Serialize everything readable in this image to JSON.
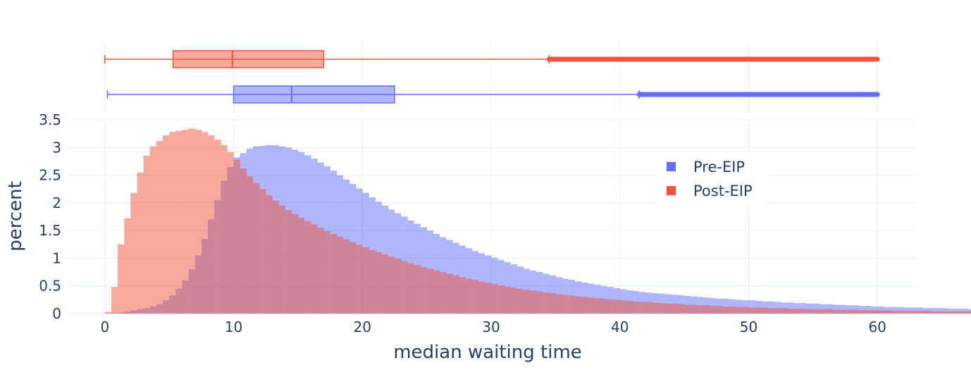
{
  "chart_data": {
    "type": "histogram",
    "xlabel": "median waiting time",
    "ylabel": "percent",
    "xlim": [
      -3,
      63
    ],
    "ylim": [
      0,
      3.5
    ],
    "x_ticks": [
      0,
      10,
      20,
      30,
      40,
      50,
      60
    ],
    "x_tick_labels": [
      "0",
      "10",
      "20",
      "30",
      "40",
      "50",
      "60"
    ],
    "y_ticks": [
      0,
      0.5,
      1,
      1.5,
      2,
      2.5,
      3,
      3.5
    ],
    "y_tick_labels": [
      "0",
      "0.5",
      "1",
      "1.5",
      "2",
      "2.5",
      "3",
      "3.5"
    ],
    "bin_start": 0,
    "bin_width": 0.5,
    "grid": true,
    "legend_position": "top-right",
    "series": [
      {
        "name": "Pre-EIP",
        "color": "#636efa",
        "values": [
          0.0,
          0.01,
          0.02,
          0.04,
          0.06,
          0.08,
          0.1,
          0.13,
          0.17,
          0.24,
          0.33,
          0.45,
          0.6,
          0.8,
          1.05,
          1.35,
          1.7,
          2.05,
          2.4,
          2.65,
          2.82,
          2.9,
          2.98,
          3.02,
          3.03,
          3.04,
          3.04,
          3.02,
          3.0,
          2.96,
          2.92,
          2.86,
          2.8,
          2.73,
          2.66,
          2.58,
          2.5,
          2.42,
          2.34,
          2.26,
          2.18,
          2.1,
          2.02,
          1.95,
          1.88,
          1.81,
          1.75,
          1.68,
          1.62,
          1.56,
          1.5,
          1.44,
          1.38,
          1.33,
          1.28,
          1.23,
          1.18,
          1.13,
          1.09,
          1.05,
          1.01,
          0.97,
          0.93,
          0.89,
          0.85,
          0.81,
          0.78,
          0.75,
          0.72,
          0.69,
          0.66,
          0.63,
          0.61,
          0.58,
          0.56,
          0.54,
          0.52,
          0.5,
          0.48,
          0.46,
          0.44,
          0.42,
          0.41,
          0.39,
          0.38,
          0.37,
          0.36,
          0.35,
          0.34,
          0.33,
          0.32,
          0.31,
          0.3,
          0.29,
          0.28,
          0.27,
          0.27,
          0.26,
          0.25,
          0.24,
          0.24,
          0.23,
          0.22,
          0.22,
          0.21,
          0.2,
          0.2,
          0.19,
          0.19,
          0.18,
          0.18,
          0.17,
          0.17,
          0.16,
          0.16,
          0.15,
          0.15,
          0.14,
          0.14,
          0.13,
          0.13,
          0.12,
          0.12,
          0.12,
          0.11,
          0.11,
          0.11,
          0.1,
          0.1,
          0.1,
          0.1,
          0.09,
          0.09,
          0.09,
          0.08,
          0.08,
          0.08,
          0.08,
          0.07,
          0.07,
          0.07,
          0.07,
          0.07,
          0.06,
          0.06,
          0.06,
          0.06,
          0.06,
          0.06,
          0.05,
          0.05,
          0.05,
          0.05,
          0.05,
          0.05,
          0.04,
          0.04,
          0.04,
          0.04,
          0.04,
          0.04,
          0.04,
          0.04,
          0.04,
          0.03,
          0.03,
          0.03,
          0.03,
          0.03,
          0.03,
          0.03,
          0.03,
          0.03,
          0.03,
          0.03,
          0.03,
          0.03,
          0.03,
          0.03,
          0.03
        ],
        "box": {
          "min": 0.2,
          "q1": 10,
          "median": 14.5,
          "q3": 22.5,
          "upper_fence": 41.5,
          "max": 60
        }
      },
      {
        "name": "Post-EIP",
        "color": "#ef553b",
        "values": [
          0.03,
          0.48,
          1.25,
          1.72,
          2.18,
          2.55,
          2.85,
          3.02,
          3.12,
          3.22,
          3.28,
          3.3,
          3.32,
          3.34,
          3.32,
          3.28,
          3.22,
          3.14,
          3.04,
          2.92,
          2.78,
          2.62,
          2.48,
          2.36,
          2.25,
          2.14,
          2.04,
          1.95,
          1.87,
          1.8,
          1.73,
          1.67,
          1.61,
          1.55,
          1.49,
          1.44,
          1.39,
          1.34,
          1.29,
          1.24,
          1.2,
          1.15,
          1.11,
          1.07,
          1.03,
          0.99,
          0.95,
          0.91,
          0.88,
          0.84,
          0.81,
          0.78,
          0.75,
          0.72,
          0.69,
          0.66,
          0.63,
          0.61,
          0.58,
          0.56,
          0.54,
          0.51,
          0.49,
          0.47,
          0.45,
          0.43,
          0.42,
          0.4,
          0.38,
          0.37,
          0.35,
          0.34,
          0.33,
          0.31,
          0.3,
          0.29,
          0.28,
          0.27,
          0.26,
          0.25,
          0.24,
          0.23,
          0.22,
          0.21,
          0.21,
          0.2,
          0.19,
          0.18,
          0.18,
          0.17,
          0.16,
          0.16,
          0.15,
          0.15,
          0.14,
          0.14,
          0.13,
          0.13,
          0.12,
          0.12,
          0.11,
          0.11,
          0.11,
          0.1,
          0.1,
          0.1,
          0.09,
          0.09,
          0.09,
          0.08,
          0.08,
          0.08,
          0.08,
          0.07,
          0.07,
          0.07,
          0.07,
          0.06,
          0.06,
          0.06,
          0.06,
          0.06,
          0.05,
          0.05,
          0.05,
          0.05,
          0.05,
          0.05,
          0.04,
          0.04,
          0.04,
          0.04,
          0.04,
          0.04,
          0.04,
          0.04,
          0.04,
          0.03,
          0.03,
          0.03,
          0.03,
          0.03,
          0.03,
          0.03,
          0.03,
          0.03,
          0.03,
          0.03,
          0.03,
          0.03,
          0.03,
          0.03,
          0.03,
          0.03,
          0.03,
          0.02,
          0.02,
          0.02,
          0.02,
          0.02,
          0.02,
          0.02,
          0.02,
          0.02,
          0.02,
          0.02,
          0.02,
          0.02,
          0.02,
          0.02,
          0.02,
          0.02,
          0.02,
          0.02,
          0.02,
          0.02,
          0.02,
          0.02,
          0.02,
          0.02
        ],
        "box": {
          "min": 0,
          "q1": 5.3,
          "median": 9.9,
          "q3": 17,
          "upper_fence": 34.5,
          "max": 60
        }
      }
    ]
  }
}
